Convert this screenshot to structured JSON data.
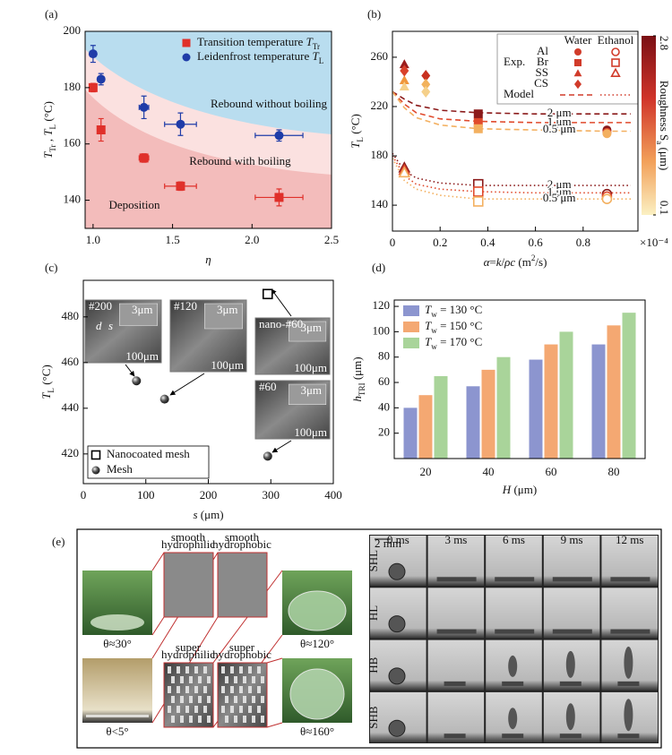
{
  "chart_data": [
    {
      "type": "scatter",
      "panel": "(a)",
      "x_label": [
        {
          "text": "η",
          "italic": true
        }
      ],
      "y_label": [
        {
          "text": "T",
          "italic": true
        },
        {
          "text": "Tr",
          "sub": true
        },
        {
          "text": " , "
        },
        {
          "text": "T",
          "italic": true
        },
        {
          "text": "L",
          "sub": true
        },
        {
          "text": " (°C)"
        }
      ],
      "xlim": [
        0.95,
        2.5
      ],
      "ylim": [
        130,
        200
      ],
      "xticks": [
        {
          "value": 1,
          "label": "1.0"
        },
        1.5,
        {
          "value": 2,
          "label": "2.0"
        },
        2.5
      ],
      "yticks": [
        140,
        160,
        180,
        200
      ],
      "regions": [
        "Rebound without boiling",
        "Rebound with boiling",
        "Deposition"
      ],
      "series": [
        {
          "name": [
            {
              "text": "Transition temperature "
            },
            {
              "text": "T",
              "italic": true
            },
            {
              "text": "Tr",
              "sub": true
            }
          ],
          "marker": "square",
          "color": "#e0302a",
          "x": [
            1.0,
            1.05,
            1.32,
            1.55,
            2.17
          ],
          "values": [
            180,
            165,
            155,
            145,
            141
          ],
          "errors": [
            1.5,
            4,
            1.5,
            1.5,
            3
          ],
          "x_errors": [
            0.02,
            0.02,
            0.03,
            0.1,
            0.15
          ]
        },
        {
          "name": [
            {
              "text": "Leidenfrost temperature "
            },
            {
              "text": "T",
              "italic": true
            },
            {
              "text": "L",
              "sub": true
            }
          ],
          "marker": "circle",
          "color": "#1f3ca8",
          "x": [
            1.0,
            1.05,
            1.32,
            1.55,
            2.17
          ],
          "values": [
            192,
            183,
            173,
            167,
            163
          ],
          "errors": [
            3,
            2,
            4,
            4,
            2
          ],
          "x_errors": [
            0.02,
            0.02,
            0.03,
            0.1,
            0.15
          ]
        }
      ]
    },
    {
      "type": "line",
      "panel": "(b)",
      "x_label": [
        {
          "text": "α",
          "italic": true
        },
        {
          "text": "="
        },
        {
          "text": "k",
          "italic": true
        },
        {
          "text": "/"
        },
        {
          "text": "ρc",
          "italic": true
        },
        {
          "text": " (m"
        },
        {
          "text": "2",
          "sup": true
        },
        {
          "text": "/s)"
        }
      ],
      "y_label": [
        {
          "text": "T",
          "italic": true
        },
        {
          "text": "L",
          "sub": true
        },
        {
          "text": " (°C)"
        }
      ],
      "x_multiplier": "×10⁻⁴",
      "xlim": [
        0,
        1.03
      ],
      "ylim": [
        119,
        281
      ],
      "xticks": [
        0,
        0.2,
        0.4,
        0.6,
        0.8
      ],
      "yticks": [
        140,
        180,
        220,
        260
      ],
      "model": [
        {
          "label": "2 μm",
          "dash": "6,4",
          "color": "#8b1a1a",
          "x": [
            0,
            0.05,
            0.1,
            0.2,
            0.36,
            0.6,
            0.9,
            1.0
          ],
          "values": [
            232,
            226,
            221,
            217,
            215,
            214,
            214,
            214
          ]
        },
        {
          "label": "1 μm",
          "dash": "6,4",
          "color": "#e04a2c",
          "x": [
            0,
            0.05,
            0.1,
            0.2,
            0.36,
            0.6,
            0.9,
            1.0
          ],
          "values": [
            232,
            222,
            215,
            210,
            208,
            207,
            207,
            207
          ]
        },
        {
          "label": "0.5 μm",
          "dash": "6,4",
          "color": "#f3b060",
          "x": [
            0,
            0.05,
            0.1,
            0.2,
            0.36,
            0.6,
            0.9,
            1.0
          ],
          "values": [
            232,
            219,
            211,
            205,
            202,
            201,
            200,
            200
          ]
        },
        {
          "label": "2 μm",
          "dash": "1.5,3",
          "color": "#8b1a1a",
          "x": [
            0,
            0.05,
            0.1,
            0.2,
            0.36,
            0.6,
            0.9,
            1.0
          ],
          "values": [
            182,
            168,
            162,
            158,
            156,
            156,
            156,
            156
          ]
        },
        {
          "label": "1 μm",
          "dash": "1.5,3",
          "color": "#e04a2c",
          "x": [
            0,
            0.05,
            0.1,
            0.2,
            0.36,
            0.6,
            0.9,
            1.0
          ],
          "values": [
            180,
            164,
            157,
            153,
            151,
            150,
            150,
            150
          ]
        },
        {
          "label": "0.5 μm",
          "dash": "1.5,3",
          "color": "#f3b060",
          "x": [
            0,
            0.05,
            0.1,
            0.2,
            0.36,
            0.6,
            0.9,
            1.0
          ],
          "values": [
            178,
            160,
            153,
            148,
            145,
            145,
            145,
            145
          ]
        }
      ],
      "series": [
        {
          "marker": "triangle",
          "open": false,
          "x": [
            0.05,
            0.05,
            0.05
          ],
          "values": [
            254,
            241,
            236
          ],
          "colors": [
            "#9b1c1c",
            "#f0963c",
            "#f5d08a"
          ]
        },
        {
          "marker": "diamond",
          "open": false,
          "x": [
            0.05,
            0.14,
            0.14,
            0.14
          ],
          "values": [
            249,
            245,
            238,
            232
          ],
          "colors": [
            "#d9412b",
            "#c8301f",
            "#f2b25c",
            "#f5d08a"
          ]
        },
        {
          "marker": "square",
          "open": false,
          "x": [
            0.36,
            0.36,
            0.36
          ],
          "values": [
            214,
            207,
            202
          ],
          "colors": [
            "#8b1a1a",
            "#e04a2c",
            "#f3b060"
          ]
        },
        {
          "marker": "circle",
          "open": false,
          "x": [
            0.9,
            0.9,
            0.9
          ],
          "values": [
            201,
            199,
            198
          ],
          "colors": [
            "#8b1a1a",
            "#e04a2c",
            "#f3b060"
          ]
        },
        {
          "marker": "triangle",
          "open": true,
          "x": [
            0.05,
            0.05,
            0.05
          ],
          "values": [
            170,
            168,
            166
          ],
          "colors": [
            "#8b1a1a",
            "#e04a2c",
            "#f3b060"
          ]
        },
        {
          "marker": "square",
          "open": true,
          "x": [
            0.36,
            0.36,
            0.36
          ],
          "values": [
            157,
            151,
            143
          ],
          "colors": [
            "#8b1a1a",
            "#e04a2c",
            "#f3b060"
          ]
        },
        {
          "marker": "circle",
          "open": true,
          "x": [
            0.9,
            0.9,
            0.9
          ],
          "values": [
            149,
            147,
            145
          ],
          "colors": [
            "#8b1a1a",
            "#e04a2c",
            "#f3b060"
          ]
        }
      ],
      "legend": {
        "columns": [
          "Water",
          "Ethanol"
        ],
        "rows": [
          "Al",
          "Br",
          "SS",
          "CS"
        ],
        "markers": [
          "circle",
          "square",
          "triangle",
          "diamond"
        ],
        "has_ethanol": [
          true,
          true,
          true,
          false
        ],
        "color": "#d13b2a",
        "group": "Exp.",
        "model": "Model"
      },
      "colorbar": {
        "range": [
          0.1,
          2.8
        ],
        "ticks": [
          2.8,
          0.1
        ],
        "label": [
          {
            "text": "Roughness S"
          },
          {
            "text": "a",
            "sub": true
          },
          {
            "text": " (μm)"
          }
        ]
      }
    },
    {
      "type": "scatter",
      "panel": "(c)",
      "x_label": [
        {
          "text": "s",
          "italic": true
        },
        {
          "text": " (μm)"
        }
      ],
      "y_label": [
        {
          "text": "T",
          "italic": true
        },
        {
          "text": "L",
          "sub": true
        },
        {
          "text": " (°C)"
        }
      ],
      "xlim": [
        0,
        400
      ],
      "ylim": [
        407,
        496
      ],
      "xticks": [
        0,
        100,
        200,
        300,
        400
      ],
      "yticks": [
        420,
        440,
        460,
        480
      ],
      "series": [
        {
          "name": "Nanocoated mesh",
          "marker": "open-square",
          "color": "#000",
          "x": [
            295
          ],
          "values": [
            490
          ]
        },
        {
          "name": "Mesh",
          "marker": "ball",
          "color": "#333",
          "x": [
            85,
            130,
            295
          ],
          "values": [
            452,
            444,
            419
          ]
        }
      ],
      "insets": [
        {
          "label": "#200",
          "scale_small": "3μm",
          "scale_big": "100μm",
          "marks": [
            "d",
            "s"
          ]
        },
        {
          "label": "#120",
          "scale_small": "3μm",
          "scale_big": "100μm",
          "marks": []
        },
        {
          "label": "nano-#60",
          "scale_small": "3μm",
          "scale_big": "100μm",
          "marks": []
        },
        {
          "label": "#60",
          "scale_small": "3μm",
          "scale_big": "100μm",
          "marks": []
        }
      ]
    },
    {
      "type": "bar",
      "panel": "(d)",
      "x_label": [
        {
          "text": "H",
          "italic": true
        },
        {
          "text": " (μm)"
        }
      ],
      "y_label": [
        {
          "text": "h",
          "italic": true
        },
        {
          "text": "TRI",
          "sub": true
        },
        {
          "text": " (μm)"
        }
      ],
      "categories": [
        20,
        40,
        60,
        80
      ],
      "ylim": [
        0,
        125
      ],
      "yticks": [
        20,
        40,
        60,
        80,
        100,
        120
      ],
      "series": [
        {
          "name": [
            {
              "text": "T",
              "italic": true
            },
            {
              "text": "w",
              "sub": true
            },
            {
              "text": " = 130 °C"
            }
          ],
          "color": "#8c95cf",
          "values": [
            40,
            57,
            78,
            90
          ]
        },
        {
          "name": [
            {
              "text": "T",
              "italic": true
            },
            {
              "text": "w",
              "sub": true
            },
            {
              "text": " = 150 °C"
            }
          ],
          "color": "#f4a872",
          "values": [
            50,
            70,
            90,
            105
          ]
        },
        {
          "name": [
            {
              "text": "T",
              "italic": true
            },
            {
              "text": "w",
              "sub": true
            },
            {
              "text": " = 170 °C"
            }
          ],
          "color": "#a9d49a",
          "values": [
            65,
            80,
            100,
            115
          ]
        }
      ]
    }
  ],
  "panel_e": {
    "label": "(e)",
    "contact_angles": [
      "θ≈30°",
      "θ<5°",
      "θ≈120°",
      "θ≈160°"
    ],
    "surfaces": [
      [
        "smooth",
        "hydrophilic"
      ],
      [
        "smooth",
        "hydrophobic"
      ],
      [
        "super",
        "hydrophilic"
      ],
      [
        "super",
        "hydrophobic"
      ]
    ],
    "times": [
      "0 ms",
      "3 ms",
      "6 ms",
      "9 ms",
      "12 ms"
    ],
    "rows": [
      "SHL",
      "HL",
      "HB",
      "SHB"
    ],
    "scale": "2 mm"
  }
}
